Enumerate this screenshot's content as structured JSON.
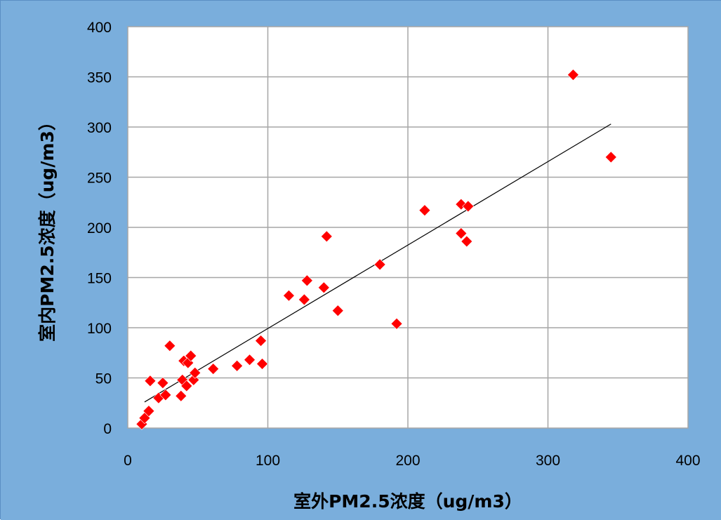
{
  "chart_data": {
    "type": "scatter",
    "xlabel": "室外PM2.5浓度（ug/m3）",
    "ylabel": "室内PM2.5浓度（ug/m3）",
    "xlim": [
      0,
      400
    ],
    "ylim": [
      0,
      400
    ],
    "x_ticks": [
      "0",
      "100",
      "200",
      "300",
      "400"
    ],
    "y_ticks": [
      "0",
      "50",
      "100",
      "150",
      "200",
      "250",
      "300",
      "350",
      "400"
    ],
    "x_tick_values": [
      0,
      100,
      200,
      300,
      400
    ],
    "y_tick_values": [
      0,
      50,
      100,
      150,
      200,
      250,
      300,
      350,
      400
    ],
    "grid": true,
    "legend": "none",
    "colors": {
      "background": "#7aaedc",
      "plot_area": "#ffffff",
      "gridline": "#a6a6a6",
      "marker": "#ff0000",
      "trendline": "#000000"
    },
    "series": [
      {
        "marker": "diamond",
        "x": [
          10,
          12,
          15,
          16,
          22,
          25,
          27,
          30,
          38,
          39,
          40,
          42,
          43,
          45,
          47,
          48,
          61,
          78,
          87,
          95,
          96,
          115,
          126,
          128,
          140,
          142,
          150,
          180,
          192,
          212,
          238,
          238,
          242,
          243,
          318,
          345
        ],
        "y": [
          4,
          10,
          17,
          47,
          30,
          45,
          33,
          82,
          32,
          48,
          67,
          42,
          65,
          72,
          48,
          55,
          59,
          62,
          68,
          87,
          64,
          132,
          128,
          147,
          140,
          191,
          117,
          163,
          104,
          217,
          223,
          194,
          186,
          221,
          352,
          270
        ]
      }
    ],
    "trendline": {
      "type": "linear",
      "x": [
        12,
        345
      ],
      "y": [
        26,
        303
      ]
    }
  }
}
